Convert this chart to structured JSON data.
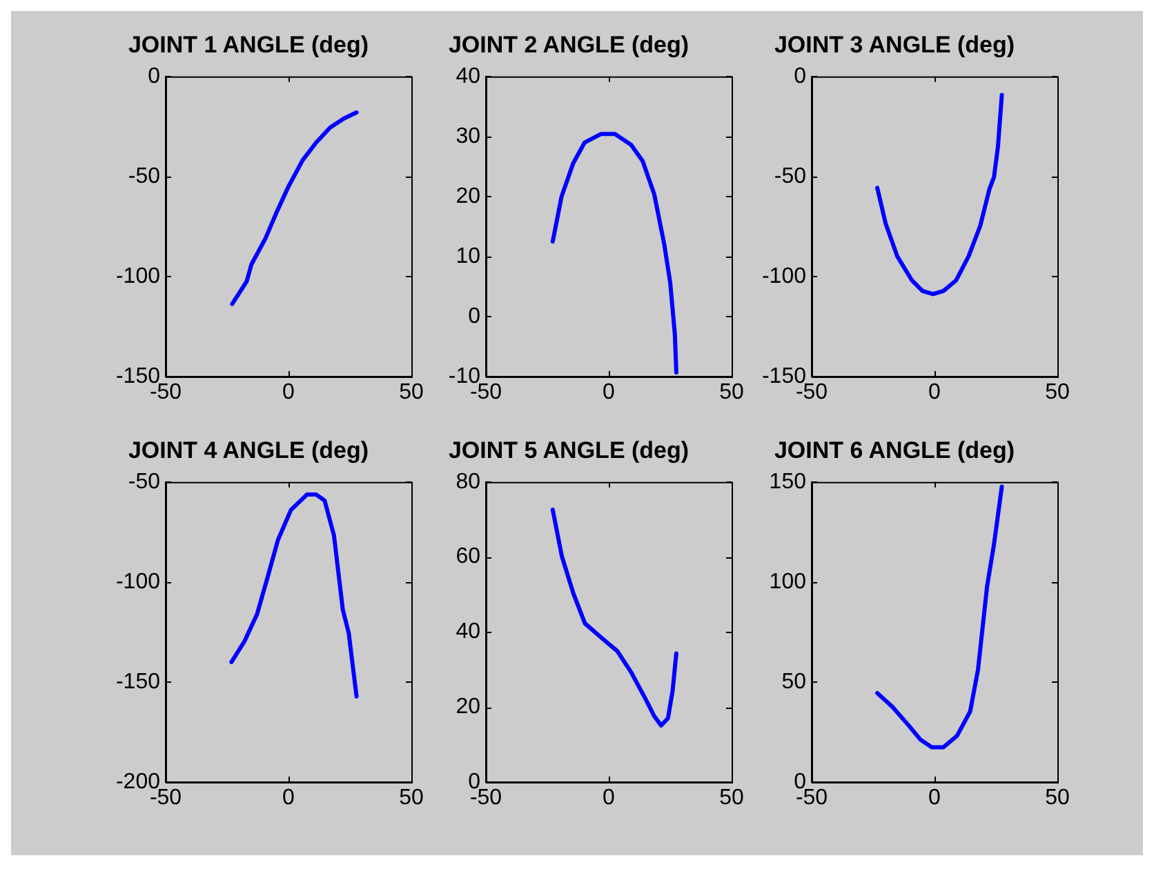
{
  "chart_data": [
    {
      "type": "line",
      "title": "JOINT 1 ANGLE (deg)",
      "color": "#0000ff",
      "grid": false,
      "xlim": [
        -50,
        50
      ],
      "xticks": [
        -50,
        0,
        50
      ],
      "ylim": [
        -150,
        0
      ],
      "yticks": [
        -150,
        -100,
        -50,
        0
      ],
      "x": [
        -22.9,
        -17,
        -15.1,
        -9.4,
        -4.7,
        0,
        5.7,
        11.3,
        17,
        22.6,
        27.7
      ],
      "values": [
        -113.7,
        -102.4,
        -94,
        -81,
        -67.5,
        -55,
        -42,
        -33,
        -25.5,
        -21,
        -18
      ]
    },
    {
      "type": "line",
      "title": "JOINT 2 ANGLE (deg)",
      "color": "#0000ff",
      "grid": false,
      "xlim": [
        -50,
        50
      ],
      "xticks": [
        -50,
        0,
        50
      ],
      "ylim": [
        -10,
        40
      ],
      "yticks": [
        -10,
        0,
        10,
        20,
        30,
        40
      ],
      "x": [
        -22.8,
        -19.2,
        -14.5,
        -9.8,
        -3.2,
        2.5,
        9.1,
        13.8,
        18.5,
        22.6,
        25,
        26.9,
        27.5
      ],
      "values": [
        12.5,
        20,
        25.5,
        29,
        30.4,
        30.4,
        28.6,
        25.9,
        20.4,
        12,
        5.7,
        -2.9,
        -9.3
      ]
    },
    {
      "type": "line",
      "title": "JOINT 3 ANGLE (deg)",
      "color": "#0000ff",
      "grid": false,
      "xlim": [
        -50,
        50
      ],
      "xticks": [
        -50,
        0,
        50
      ],
      "ylim": [
        -150,
        0
      ],
      "yticks": [
        -150,
        -100,
        -50,
        0
      ],
      "x": [
        -23.3,
        -19.9,
        -15.2,
        -9.2,
        -4.9,
        -0.6,
        3.6,
        8.8,
        13.9,
        18.6,
        22.4,
        24.2,
        25.8,
        27.4
      ],
      "values": [
        -55.7,
        -73.5,
        -89.8,
        -101.9,
        -107.2,
        -108.8,
        -107.2,
        -101.9,
        -89.8,
        -74.7,
        -56.1,
        -50.3,
        -35.3,
        -9.3
      ]
    },
    {
      "type": "line",
      "title": "JOINT 4 ANGLE (deg)",
      "color": "#0000ff",
      "grid": false,
      "xlim": [
        -50,
        50
      ],
      "xticks": [
        -50,
        0,
        50
      ],
      "ylim": [
        -200,
        -50
      ],
      "yticks": [
        -200,
        -150,
        -100,
        -50
      ],
      "x": [
        -23.2,
        -17.9,
        -12.8,
        -8.5,
        -4.3,
        1,
        7.5,
        11.3,
        14.7,
        18.5,
        22.1,
        24.5,
        27.7
      ],
      "values": [
        -140,
        -129.6,
        -116.1,
        -97.6,
        -79,
        -64,
        -56.3,
        -56.3,
        -59.3,
        -76.7,
        -113.8,
        -125.4,
        -157.2
      ]
    },
    {
      "type": "line",
      "title": "JOINT 5 ANGLE (deg)",
      "color": "#0000ff",
      "grid": false,
      "xlim": [
        -50,
        50
      ],
      "xticks": [
        -50,
        0,
        50
      ],
      "ylim": [
        0,
        80
      ],
      "yticks": [
        0,
        20,
        40,
        60,
        80
      ],
      "x": [
        -22.8,
        -19.1,
        -14.4,
        -9.7,
        -3.2,
        3.5,
        9.1,
        14.7,
        18.5,
        21.3,
        24.1,
        26,
        27.5
      ],
      "values": [
        72.6,
        60.2,
        50.3,
        42.3,
        38.6,
        34.9,
        29.3,
        22.5,
        17.6,
        15.1,
        17,
        24.4,
        34.3
      ]
    },
    {
      "type": "line",
      "title": "JOINT 6 ANGLE (deg)",
      "color": "#0000ff",
      "grid": false,
      "xlim": [
        -50,
        50
      ],
      "xticks": [
        -50,
        0,
        50
      ],
      "ylim": [
        0,
        150
      ],
      "yticks": [
        0,
        50,
        100,
        150
      ],
      "x": [
        -23.3,
        -17.1,
        -10.5,
        -5.8,
        -1.1,
        3.6,
        9.2,
        14.5,
        17.7,
        21.4,
        24.2,
        27.4
      ],
      "values": [
        44.5,
        37.6,
        28.3,
        21.3,
        17.4,
        17.4,
        23.2,
        35.3,
        56.2,
        97.9,
        118.8,
        147.7
      ]
    }
  ]
}
